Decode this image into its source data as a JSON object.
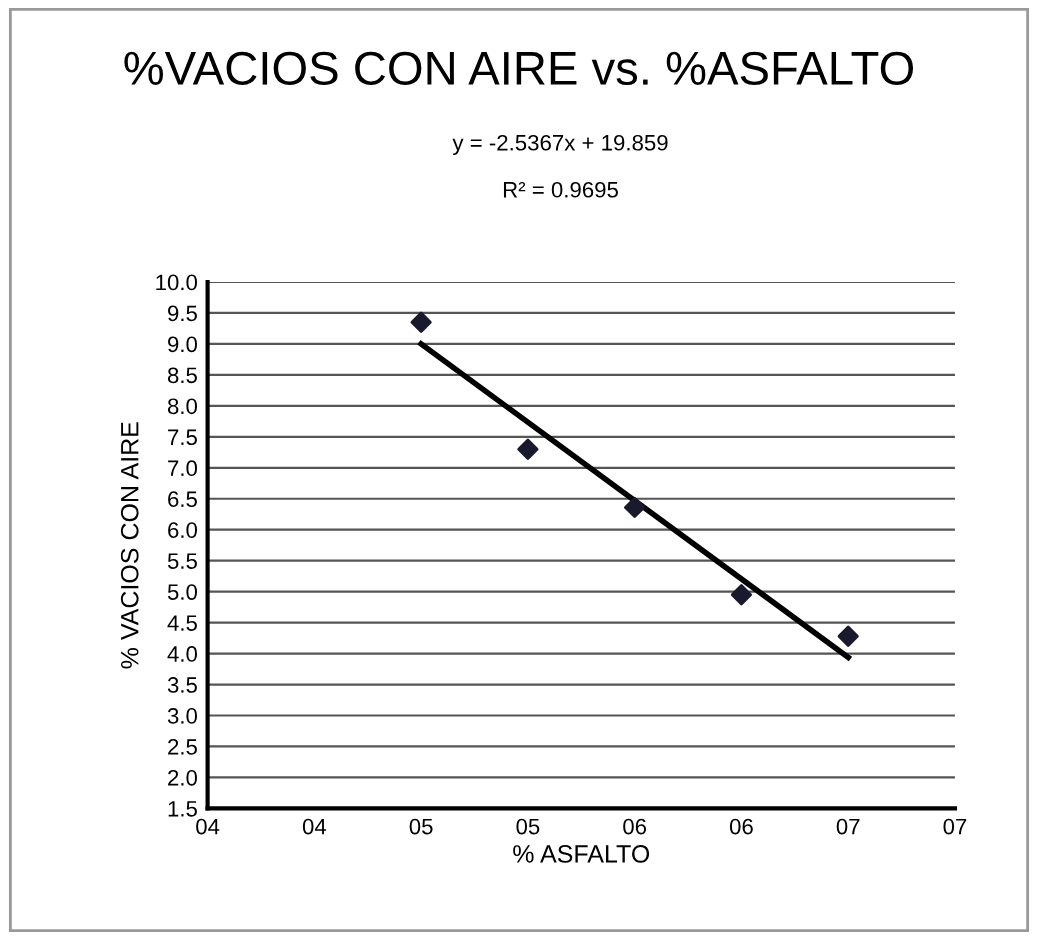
{
  "chart_data": {
    "type": "scatter",
    "title": "%VACIOS CON AIRE vs. %ASFALTO",
    "xlabel": "% ASFALTO",
    "ylabel": "% VACIOS CON AIRE",
    "annotations": [
      "y = -2.5367x + 19.859",
      "R² = 0.9695"
    ],
    "x": [
      5.0,
      5.5,
      6.0,
      6.5,
      7.0
    ],
    "series": [
      {
        "color": "#1a1a2e",
        "values": [
          9.35,
          7.3,
          6.36,
          4.95,
          4.28
        ],
        "marker": "diamond"
      },
      {
        "type": "line",
        "color": "#000000",
        "x": [
          5.0,
          7.0
        ],
        "values": [
          9.0,
          3.94
        ],
        "marker": "none"
      }
    ],
    "xlim": [
      4.0,
      7.5
    ],
    "xticks": [
      {
        "value": 4.0,
        "label": "04"
      },
      {
        "value": 4.5,
        "label": "04"
      },
      {
        "value": 5.0,
        "label": "05"
      },
      {
        "value": 5.5,
        "label": "05"
      },
      {
        "value": 6.0,
        "label": "06"
      },
      {
        "value": 6.5,
        "label": "06"
      },
      {
        "value": 7.0,
        "label": "07"
      },
      {
        "value": 7.5,
        "label": "07"
      }
    ],
    "ylim": [
      1.5,
      10.0
    ],
    "yticks": [
      {
        "value": 10,
        "label": "10.0"
      },
      {
        "value": 9.5,
        "label": "9.5"
      },
      {
        "value": 9,
        "label": "9.0"
      },
      {
        "value": 8.5,
        "label": "8.5"
      },
      {
        "value": 8,
        "label": "8.0"
      },
      {
        "value": 7.5,
        "label": "7.5"
      },
      {
        "value": 7,
        "label": "7.0"
      },
      {
        "value": 6.5,
        "label": "6.5"
      },
      {
        "value": 6,
        "label": "6.0"
      },
      {
        "value": 5.5,
        "label": "5.5"
      },
      {
        "value": 5,
        "label": "5.0"
      },
      {
        "value": 4.5,
        "label": "4.5"
      },
      {
        "value": 4,
        "label": "4.0"
      },
      {
        "value": 3.5,
        "label": "3.5"
      },
      {
        "value": 3,
        "label": "3.0"
      },
      {
        "value": 2.5,
        "label": "2.5"
      },
      {
        "value": 2,
        "label": "2.0"
      },
      {
        "value": 1.5,
        "label": "1.5"
      }
    ],
    "grid": "y",
    "legend": false
  }
}
